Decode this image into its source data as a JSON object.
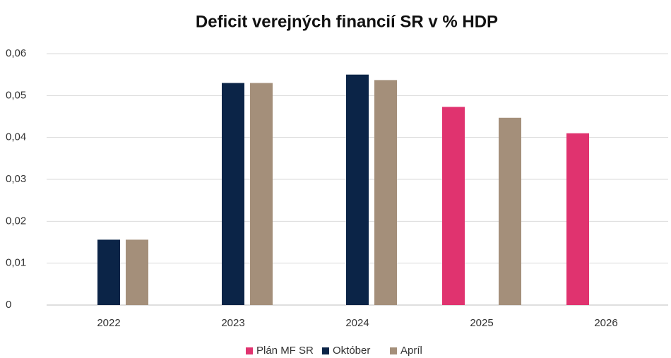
{
  "chart_data": {
    "type": "bar",
    "title": "Deficit verejných financií SR v % HDP",
    "categories": [
      "2022",
      "2023",
      "2024",
      "2025",
      "2026"
    ],
    "series": [
      {
        "name": "Plán MF SR",
        "color": "#e0336f",
        "values": [
          null,
          null,
          null,
          0.0473,
          0.041
        ]
      },
      {
        "name": "Október",
        "color": "#0b2447",
        "values": [
          0.0156,
          0.053,
          0.055,
          null,
          null
        ]
      },
      {
        "name": "Apríl",
        "color": "#a48f7a",
        "values": [
          0.0156,
          0.053,
          0.0537,
          0.0447,
          null
        ]
      }
    ],
    "ylim": [
      0,
      0.06
    ],
    "yticks": [
      0,
      {
        "value": 0.01,
        "label": "0,01"
      },
      {
        "value": 0.02,
        "label": "0,02"
      },
      {
        "value": 0.03,
        "label": "0,03"
      },
      {
        "value": 0.04,
        "label": "0,04"
      },
      {
        "value": 0.05,
        "label": "0,05"
      },
      {
        "value": 0.06,
        "label": "0,06"
      }
    ],
    "grid": true,
    "legend": "bottom"
  }
}
